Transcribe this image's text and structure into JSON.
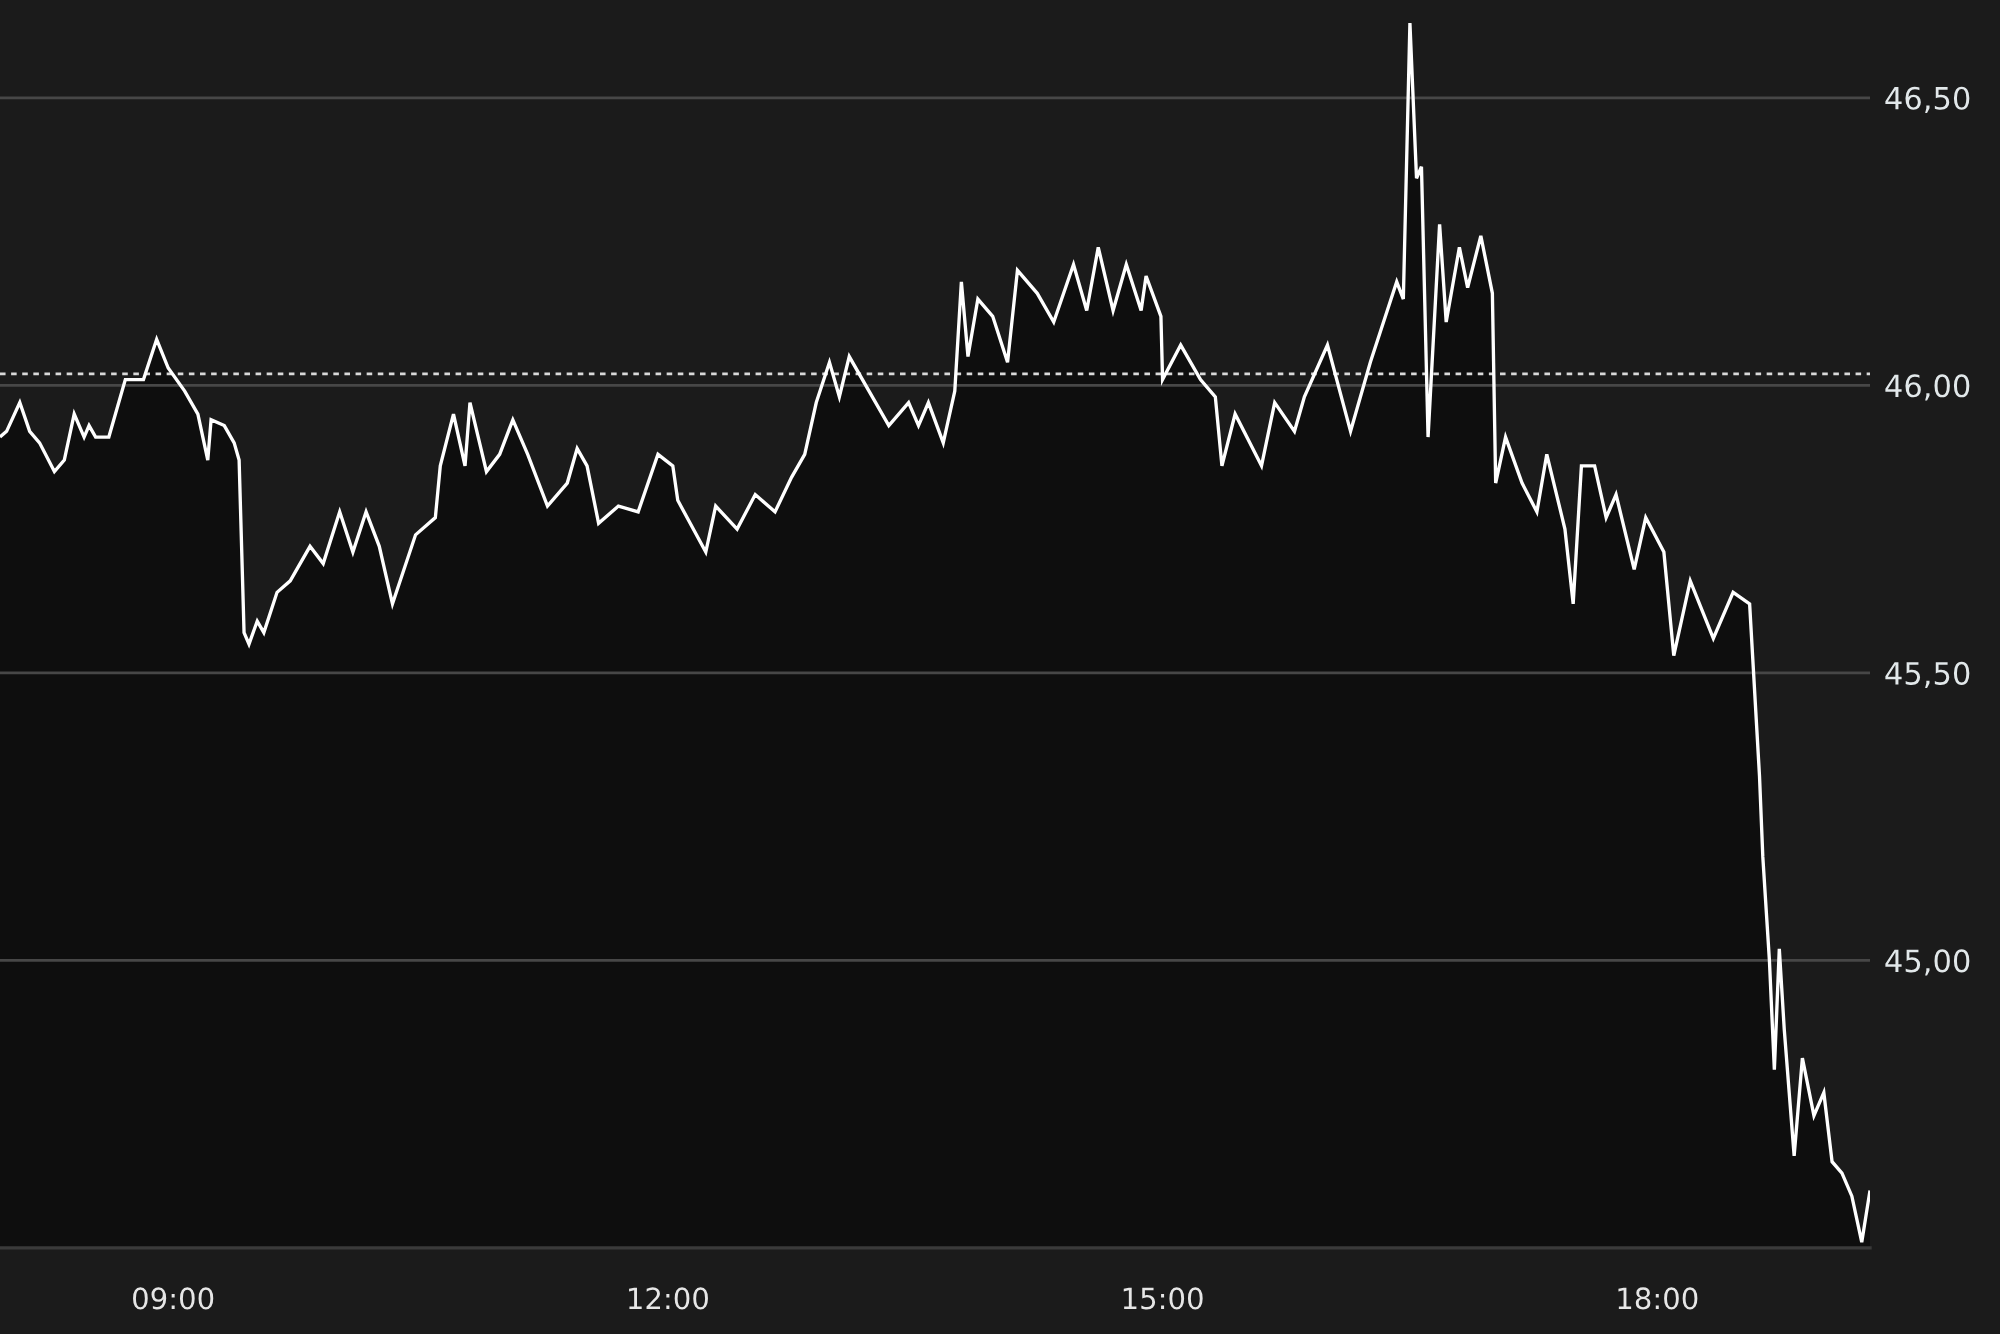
{
  "chart_data": {
    "type": "area",
    "color": "#ffffff",
    "x": [
      7.95,
      7.99,
      8.07,
      8.13,
      8.19,
      8.28,
      8.34,
      8.4,
      8.46,
      8.49,
      8.53,
      8.61,
      8.71,
      8.82,
      8.9,
      8.97,
      9.07,
      9.15,
      9.21,
      9.23,
      9.31,
      9.37,
      9.4,
      9.43,
      9.46,
      9.51,
      9.55,
      9.63,
      9.71,
      9.83,
      9.91,
      10.01,
      10.09,
      10.17,
      10.25,
      10.33,
      10.47,
      10.59,
      10.62,
      10.7,
      10.77,
      10.8,
      10.9,
      10.98,
      11.06,
      11.15,
      11.27,
      11.39,
      11.45,
      11.51,
      11.58,
      11.7,
      11.82,
      11.94,
      12.03,
      12.06,
      12.23,
      12.29,
      12.42,
      12.53,
      12.65,
      12.75,
      12.83,
      12.9,
      12.98,
      13.04,
      13.1,
      13.22,
      13.34,
      13.46,
      13.52,
      13.58,
      13.67,
      13.74,
      13.78,
      13.82,
      13.88,
      13.97,
      14.06,
      14.12,
      14.24,
      14.34,
      14.46,
      14.54,
      14.61,
      14.7,
      14.78,
      14.87,
      14.9,
      14.99,
      15.0,
      15.11,
      15.23,
      15.32,
      15.36,
      15.44,
      15.6,
      15.68,
      15.8,
      15.86,
      16.0,
      16.14,
      16.26,
      16.42,
      16.46,
      16.5,
      16.54,
      16.57,
      16.61,
      16.68,
      16.72,
      16.8,
      16.85,
      16.93,
      17.0,
      17.02,
      17.08,
      17.18,
      17.27,
      17.33,
      17.44,
      17.49,
      17.54,
      17.62,
      17.69,
      17.75,
      17.86,
      17.93,
      18.04,
      18.1,
      18.2,
      18.34,
      18.46,
      18.56,
      18.62,
      18.64,
      18.68,
      18.71,
      18.74,
      18.77,
      18.83,
      18.88,
      18.95,
      19.01,
      19.06,
      19.12,
      19.18,
      19.24,
      19.29
    ],
    "values": [
      45.91,
      45.92,
      45.97,
      45.92,
      45.9,
      45.85,
      45.87,
      45.95,
      45.91,
      45.93,
      45.91,
      45.91,
      46.01,
      46.01,
      46.08,
      46.03,
      45.99,
      45.95,
      45.87,
      45.94,
      45.93,
      45.9,
      45.87,
      45.57,
      45.55,
      45.59,
      45.57,
      45.64,
      45.66,
      45.72,
      45.69,
      45.78,
      45.71,
      45.78,
      45.72,
      45.62,
      45.74,
      45.77,
      45.86,
      45.95,
      45.86,
      45.97,
      45.85,
      45.88,
      45.94,
      45.88,
      45.79,
      45.83,
      45.89,
      45.86,
      45.76,
      45.79,
      45.78,
      45.88,
      45.86,
      45.8,
      45.71,
      45.79,
      45.75,
      45.81,
      45.78,
      45.84,
      45.88,
      45.97,
      46.04,
      45.98,
      46.05,
      45.99,
      45.93,
      45.97,
      45.93,
      45.97,
      45.9,
      45.99,
      46.18,
      46.05,
      46.15,
      46.12,
      46.04,
      46.2,
      46.16,
      46.11,
      46.21,
      46.13,
      46.24,
      46.13,
      46.21,
      46.13,
      46.19,
      46.12,
      46.01,
      46.07,
      46.01,
      45.98,
      45.86,
      45.95,
      45.86,
      45.97,
      45.92,
      45.98,
      46.07,
      45.92,
      46.04,
      46.18,
      46.15,
      46.63,
      46.36,
      46.38,
      45.91,
      46.28,
      46.11,
      46.24,
      46.17,
      46.26,
      46.16,
      45.83,
      45.91,
      45.83,
      45.78,
      45.88,
      45.75,
      45.62,
      45.86,
      45.86,
      45.77,
      45.81,
      45.68,
      45.77,
      45.71,
      45.53,
      45.66,
      45.56,
      45.64,
      45.62,
      45.32,
      45.18,
      45.0,
      44.81,
      45.02,
      44.88,
      44.66,
      44.83,
      44.73,
      44.77,
      44.65,
      44.63,
      44.59,
      44.51,
      44.6
    ],
    "xlim": [
      7.95,
      19.29
    ],
    "xticks": [
      {
        "value": 9,
        "label": "09:00"
      },
      {
        "value": 12,
        "label": "12:00"
      },
      {
        "value": 15,
        "label": "15:00"
      },
      {
        "value": 18,
        "label": "18:00"
      }
    ],
    "ylim": [
      44.5,
      46.67
    ],
    "yticks": [
      {
        "value": 45.0,
        "label": "45,00"
      },
      {
        "value": 45.5,
        "label": "45,50"
      },
      {
        "value": 46.0,
        "label": "46,00"
      },
      {
        "value": 46.5,
        "label": "46,50"
      }
    ],
    "grid": "y",
    "ref_lines": [
      {
        "axis": "y",
        "value": 46.02,
        "color": "#d9d9d9",
        "line_style": "dotted"
      }
    ]
  }
}
